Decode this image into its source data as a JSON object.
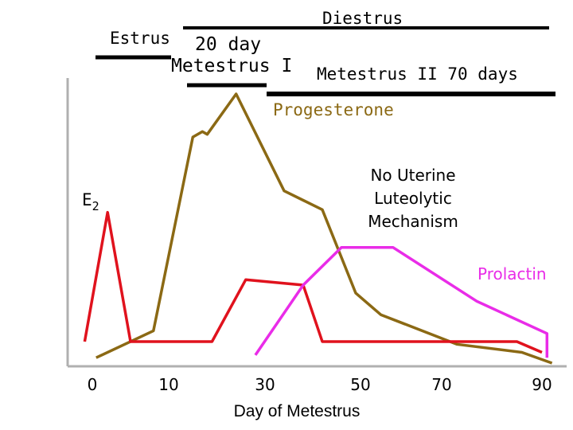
{
  "chart_data": {
    "type": "line",
    "title": "",
    "xlabel": "Day of Metestrus",
    "ylabel": "",
    "x_ticks": [
      "0",
      "10",
      "30",
      "50",
      "70",
      "90"
    ],
    "stages": {
      "estrus": "Estrus",
      "twenty_day": "20 day",
      "metestrus_1": "Metestrus I",
      "diestrus": "Diestrus",
      "metestrus_2": "Metestrus II 70 days"
    },
    "annotations": {
      "e2_main": "E",
      "e2_sub": "2",
      "no_uterine": [
        "No Uterine",
        "Luteolytic",
        "Mechanism"
      ]
    },
    "series": [
      {
        "name": "Progesterone",
        "color": "#8b6914",
        "points": [
          [
            0.5,
            2
          ],
          [
            8,
            12
          ],
          [
            15,
            84
          ],
          [
            17,
            86
          ],
          [
            18,
            85
          ],
          [
            24,
            100
          ],
          [
            34,
            64
          ],
          [
            42,
            57
          ],
          [
            49,
            26
          ],
          [
            55,
            18
          ],
          [
            73,
            7
          ],
          [
            86,
            4
          ],
          [
            92,
            0
          ]
        ]
      },
      {
        "name": "E",
        "name_sub": "2",
        "color": "#e0121d",
        "points": [
          [
            -1,
            8
          ],
          [
            2,
            56
          ],
          [
            5,
            8
          ],
          [
            19,
            8
          ],
          [
            26,
            31
          ],
          [
            38,
            29
          ],
          [
            42,
            8
          ],
          [
            85,
            8
          ],
          [
            90,
            4
          ]
        ]
      },
      {
        "name": "Prolactin",
        "color": "#e92ce8",
        "points": [
          [
            28,
            3
          ],
          [
            38,
            29
          ],
          [
            46,
            43
          ],
          [
            58,
            43
          ],
          [
            77,
            23
          ],
          [
            91,
            11
          ],
          [
            91,
            2
          ]
        ]
      }
    ]
  }
}
